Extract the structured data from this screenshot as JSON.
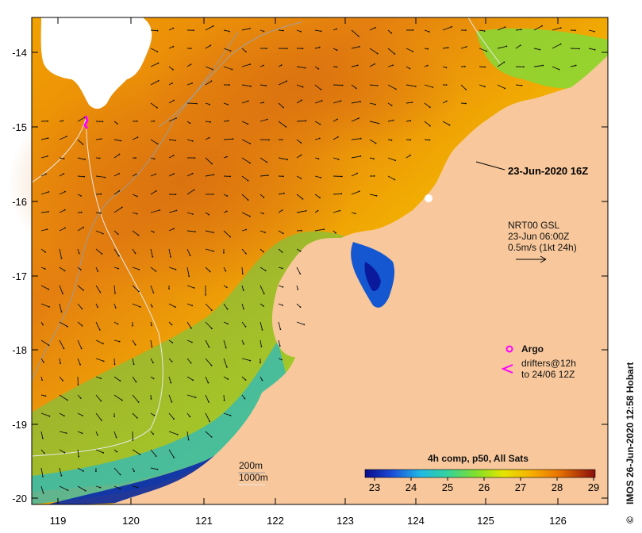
{
  "map": {
    "x_ticks": [
      "119",
      "120",
      "121",
      "122",
      "123",
      "124",
      "125",
      "126"
    ],
    "y_ticks": [
      "-14",
      "-15",
      "-16",
      "-17",
      "-18",
      "-19",
      "-20"
    ],
    "date_label": "23-Jun-2020 16Z",
    "current_legend": {
      "line1": "NRT00 GSL",
      "line2": "23-Jun 06:00Z",
      "line3": "0.5m/s (1kt 24h)"
    },
    "markers": {
      "argo": "Argo",
      "drifters_line1": "drifters@12h",
      "drifters_line2": "to 24/06 12Z"
    },
    "depth_legend": {
      "d200": "200m",
      "d1000": "1000m"
    },
    "colorbar": {
      "title": "4h comp, p50, All Sats",
      "ticks": [
        "23",
        "24",
        "25",
        "26",
        "27",
        "28",
        "29"
      ]
    },
    "credit": "IMOS 26-Jun-2020 12:58 Hobart",
    "copyright_symbol": "©"
  },
  "colors": {
    "land": "#f8c89c",
    "cloud": "#ffffff",
    "marker": "#ff00ff",
    "contour": "#cfcfcf"
  }
}
